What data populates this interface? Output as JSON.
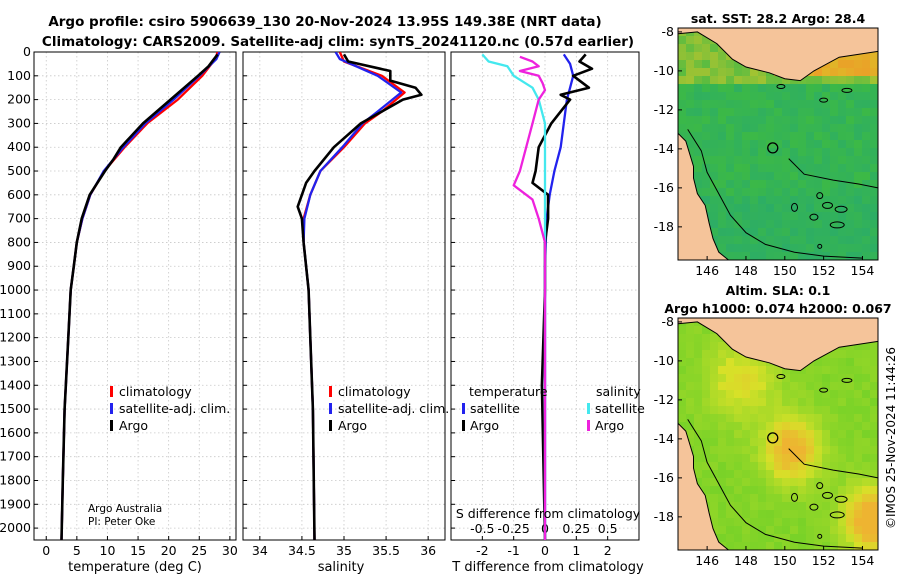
{
  "header": {
    "line1": "Argo profile: csiro 5906639_130 20-Nov-2024 13.95S 149.38E (NRT data)",
    "line2": "Climatology: CARS2009. Satellite-adj clim: synTS_20241120.nc (0.57d earlier)"
  },
  "colors": {
    "climatology": "#ff0000",
    "satellite": "#2222ee",
    "argo": "#000000",
    "sat_sal": "#44e8ee",
    "argo_sal": "#ee22dd",
    "land": "#f5c49a"
  },
  "depth_axis": {
    "ticks": [
      "0",
      "100",
      "200",
      "300",
      "400",
      "500",
      "600",
      "700",
      "800",
      "900",
      "1000",
      "1100",
      "1200",
      "1300",
      "1400",
      "1500",
      "1600",
      "1700",
      "1800",
      "1900",
      "2000"
    ]
  },
  "chart_data": [
    {
      "type": "line",
      "id": "temperature",
      "xlabel": "temperature (deg C)",
      "ylabel": "depth",
      "xlim": [
        -2,
        31
      ],
      "ylim": [
        2050,
        0
      ],
      "xticks": [
        "0",
        "5",
        "10",
        "15",
        "20",
        "25",
        "30"
      ],
      "legend": [
        "climatology",
        "satellite-adj. clim.",
        "Argo"
      ],
      "series": [
        {
          "name": "climatology",
          "depth": [
            0,
            30,
            100,
            200,
            300,
            400,
            500,
            600,
            700,
            800,
            900,
            1000,
            1200,
            1500,
            1800,
            2050
          ],
          "values": [
            28,
            27.6,
            25.5,
            21.5,
            16.5,
            12.8,
            9.5,
            7.2,
            5.9,
            5.0,
            4.5,
            4.0,
            3.6,
            3.0,
            2.7,
            2.5
          ]
        },
        {
          "name": "satellite-adj. clim.",
          "depth": [
            0,
            30,
            100,
            200,
            300,
            400,
            500,
            600,
            700,
            800,
            900,
            1000,
            1200,
            1500,
            1800,
            2050
          ],
          "values": [
            28.3,
            27.8,
            25.0,
            20.8,
            16.2,
            12.6,
            9.4,
            7.2,
            5.9,
            5.0,
            4.5,
            4.0,
            3.6,
            3.0,
            2.7,
            2.5
          ]
        },
        {
          "name": "Argo",
          "depth": [
            10,
            30,
            60,
            100,
            200,
            300,
            400,
            450,
            500,
            600,
            700,
            800,
            900,
            1000,
            1200,
            1500,
            1800,
            2050
          ],
          "values": [
            28.0,
            27.4,
            26.5,
            24.8,
            20.3,
            15.8,
            12.2,
            11.0,
            9.6,
            7.1,
            5.8,
            5.0,
            4.5,
            4.0,
            3.6,
            3.0,
            2.7,
            2.5
          ]
        }
      ],
      "annotation": [
        "Argo Australia",
        "PI: Peter Oke"
      ]
    },
    {
      "type": "line",
      "id": "salinity",
      "xlabel": "salinity",
      "xlim": [
        33.8,
        36.2
      ],
      "xticks": [
        "34",
        "34.5",
        "35",
        "35.5",
        "36"
      ],
      "legend": [
        "climatology",
        "satellite-adj. clim.",
        "Argo"
      ],
      "series": [
        {
          "name": "climatology",
          "depth": [
            0,
            40,
            100,
            170,
            250,
            300,
            400,
            500,
            600,
            700,
            800,
            900,
            1000,
            1200,
            1500,
            2050
          ],
          "values": [
            34.95,
            35.0,
            35.45,
            35.72,
            35.45,
            35.25,
            35.0,
            34.72,
            34.6,
            34.52,
            34.52,
            34.55,
            34.58,
            34.6,
            34.63,
            34.65
          ]
        },
        {
          "name": "satellite-adj. clim.",
          "depth": [
            0,
            30,
            100,
            170,
            250,
            300,
            400,
            500,
            600,
            700,
            800,
            900,
            1000,
            1200,
            1500,
            2050
          ],
          "values": [
            34.9,
            34.95,
            35.4,
            35.68,
            35.4,
            35.22,
            34.98,
            34.72,
            34.6,
            34.53,
            34.52,
            34.55,
            34.58,
            34.6,
            34.63,
            34.65
          ]
        },
        {
          "name": "Argo",
          "depth": [
            10,
            40,
            80,
            120,
            150,
            180,
            200,
            250,
            300,
            400,
            500,
            550,
            650,
            700,
            800,
            900,
            1000,
            1200,
            1500,
            2050
          ],
          "values": [
            35.0,
            35.05,
            35.55,
            35.55,
            35.85,
            35.92,
            35.7,
            35.45,
            35.2,
            34.88,
            34.65,
            34.55,
            34.45,
            34.5,
            34.52,
            34.55,
            34.58,
            34.6,
            34.63,
            34.65
          ]
        }
      ]
    },
    {
      "type": "line",
      "id": "difference",
      "xlabel": "T difference from climatology",
      "xlabel2": "S difference from climatology",
      "xlim": [
        -3,
        3
      ],
      "xticks": [
        "-2",
        "-1",
        "0",
        "1",
        "2"
      ],
      "xticks2": [
        "-0.5",
        "-0.25",
        "0",
        "0.25",
        "0.5"
      ],
      "legend_left_title": "temperature",
      "legend_right_title": "salinity",
      "legend_left": [
        "satellite",
        "Argo"
      ],
      "legend_right": [
        "satellite",
        "Argo"
      ],
      "series": [
        {
          "name": "T satellite",
          "depth": [
            10,
            50,
            100,
            150,
            200,
            300,
            400,
            500,
            600,
            700,
            900,
            1200,
            1600,
            2050
          ],
          "values": [
            0.6,
            0.8,
            0.9,
            0.8,
            0.7,
            0.6,
            0.5,
            0.3,
            0.15,
            0.05,
            0,
            0,
            0,
            0
          ]
        },
        {
          "name": "T Argo",
          "depth": [
            10,
            40,
            70,
            100,
            150,
            180,
            200,
            300,
            400,
            500,
            550,
            600,
            700,
            800,
            1000,
            1400,
            2050
          ],
          "values": [
            1.3,
            1.1,
            1.5,
            0.9,
            1.4,
            0.5,
            0.8,
            0.2,
            -0.2,
            -0.3,
            -0.4,
            0.1,
            0.1,
            0,
            0,
            -0.1,
            0
          ]
        },
        {
          "name": "S satellite",
          "depth": [
            10,
            40,
            60,
            100,
            150,
            200,
            300,
            400,
            600,
            900,
            1500,
            2050
          ],
          "values": [
            -0.5,
            -0.45,
            -0.3,
            -0.25,
            -0.1,
            -0.05,
            0,
            0,
            0,
            0,
            0,
            0
          ]
        },
        {
          "name": "S Argo",
          "depth": [
            20,
            40,
            60,
            80,
            100,
            130,
            160,
            200,
            300,
            400,
            500,
            560,
            620,
            700,
            800,
            1000,
            1500,
            2050
          ],
          "values": [
            -0.2,
            -0.1,
            -0.05,
            -0.2,
            -0.05,
            -0.02,
            0,
            -0.05,
            -0.1,
            -0.15,
            -0.2,
            -0.25,
            -0.1,
            -0.05,
            0,
            0,
            0,
            0
          ]
        }
      ]
    },
    {
      "type": "heatmap",
      "id": "sst_map",
      "title": "sat. SST: 28.2 Argo: 28.4",
      "xticks": [
        "146",
        "148",
        "150",
        "152",
        "154"
      ],
      "yticks": [
        "-8",
        "-10",
        "-12",
        "-14",
        "-16",
        "-18"
      ],
      "argo_position": {
        "lon": 149.38,
        "lat": -13.95
      }
    },
    {
      "type": "heatmap",
      "id": "sla_map",
      "title": "Altim. SLA: 0.1",
      "subtitle": "Argo h1000: 0.074 h2000: 0.067",
      "xticks": [
        "146",
        "148",
        "150",
        "152",
        "154"
      ],
      "yticks": [
        "-8",
        "-10",
        "-12",
        "-14",
        "-16",
        "-18"
      ],
      "argo_position": {
        "lon": 149.38,
        "lat": -13.95
      }
    }
  ],
  "watermark": "©IMOS 25-Nov-2024 11:44:26"
}
